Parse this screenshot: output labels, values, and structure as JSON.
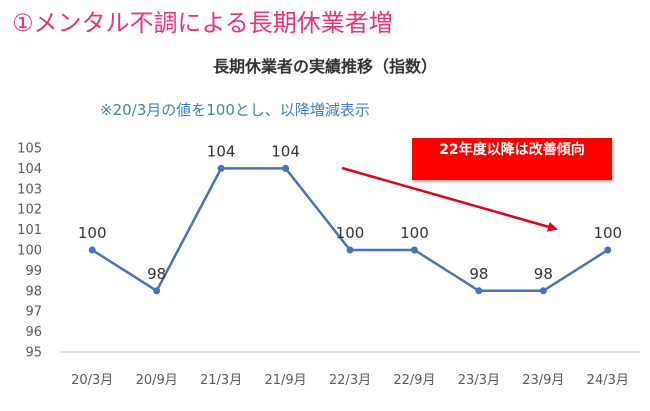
{
  "heading": "①メンタル不調による長期休業者増",
  "note": "※20/3月の値を100とし、以降増減表示",
  "callout": "22年度以降は改善傾向",
  "colors": {
    "heading": "#e8347c",
    "note": "#3a7fd5",
    "line": "#4472c4",
    "callout": "#ff0000",
    "arrow": "#e0001b"
  },
  "chart_data": {
    "type": "line",
    "title": "長期休業者の実績推移（指数）",
    "categories": [
      "20/3月",
      "20/9月",
      "21/3月",
      "21/9月",
      "22/3月",
      "22/9月",
      "23/3月",
      "23/9月",
      "24/3月"
    ],
    "series": [
      {
        "values": [
          100,
          98,
          104,
          104,
          100,
          100,
          98,
          98,
          100
        ]
      }
    ],
    "ylim": [
      95,
      105
    ],
    "yticks": [
      95,
      96,
      97,
      98,
      99,
      100,
      101,
      102,
      103,
      104,
      105
    ],
    "grid": false,
    "data_labels": true
  }
}
